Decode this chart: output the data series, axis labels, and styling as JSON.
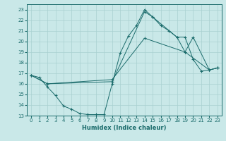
{
  "xlabel": "Humidex (Indice chaleur)",
  "xlim": [
    -0.5,
    23.5
  ],
  "ylim": [
    13,
    23.5
  ],
  "yticks": [
    13,
    14,
    15,
    16,
    17,
    18,
    19,
    20,
    21,
    22,
    23
  ],
  "xticks": [
    0,
    1,
    2,
    3,
    4,
    5,
    6,
    7,
    8,
    9,
    10,
    11,
    12,
    13,
    14,
    15,
    16,
    17,
    18,
    19,
    20,
    21,
    22,
    23
  ],
  "background_color": "#c9e8e8",
  "grid_color": "#a8d0d0",
  "line_color": "#1a6b6b",
  "line1_x": [
    0,
    1,
    2,
    3,
    4,
    5,
    6,
    7,
    8,
    9,
    10,
    11,
    12,
    13,
    14,
    15,
    16,
    17,
    18,
    19,
    20,
    21,
    22,
    23
  ],
  "line1_y": [
    16.8,
    16.6,
    15.7,
    14.9,
    13.9,
    13.6,
    13.2,
    13.1,
    13.1,
    13.1,
    16.0,
    18.9,
    20.5,
    21.5,
    23.0,
    22.3,
    21.5,
    21.0,
    20.4,
    20.4,
    18.3,
    17.2,
    17.3,
    17.5
  ],
  "line2_x": [
    0,
    2,
    10,
    14,
    15,
    18,
    19,
    22,
    23
  ],
  "line2_y": [
    16.8,
    16.0,
    16.2,
    22.8,
    22.3,
    20.4,
    19.0,
    17.3,
    17.5
  ],
  "line3_x": [
    0,
    2,
    10,
    14,
    19,
    20,
    22,
    23
  ],
  "line3_y": [
    16.8,
    16.0,
    16.4,
    20.3,
    19.0,
    20.4,
    17.3,
    17.5
  ]
}
